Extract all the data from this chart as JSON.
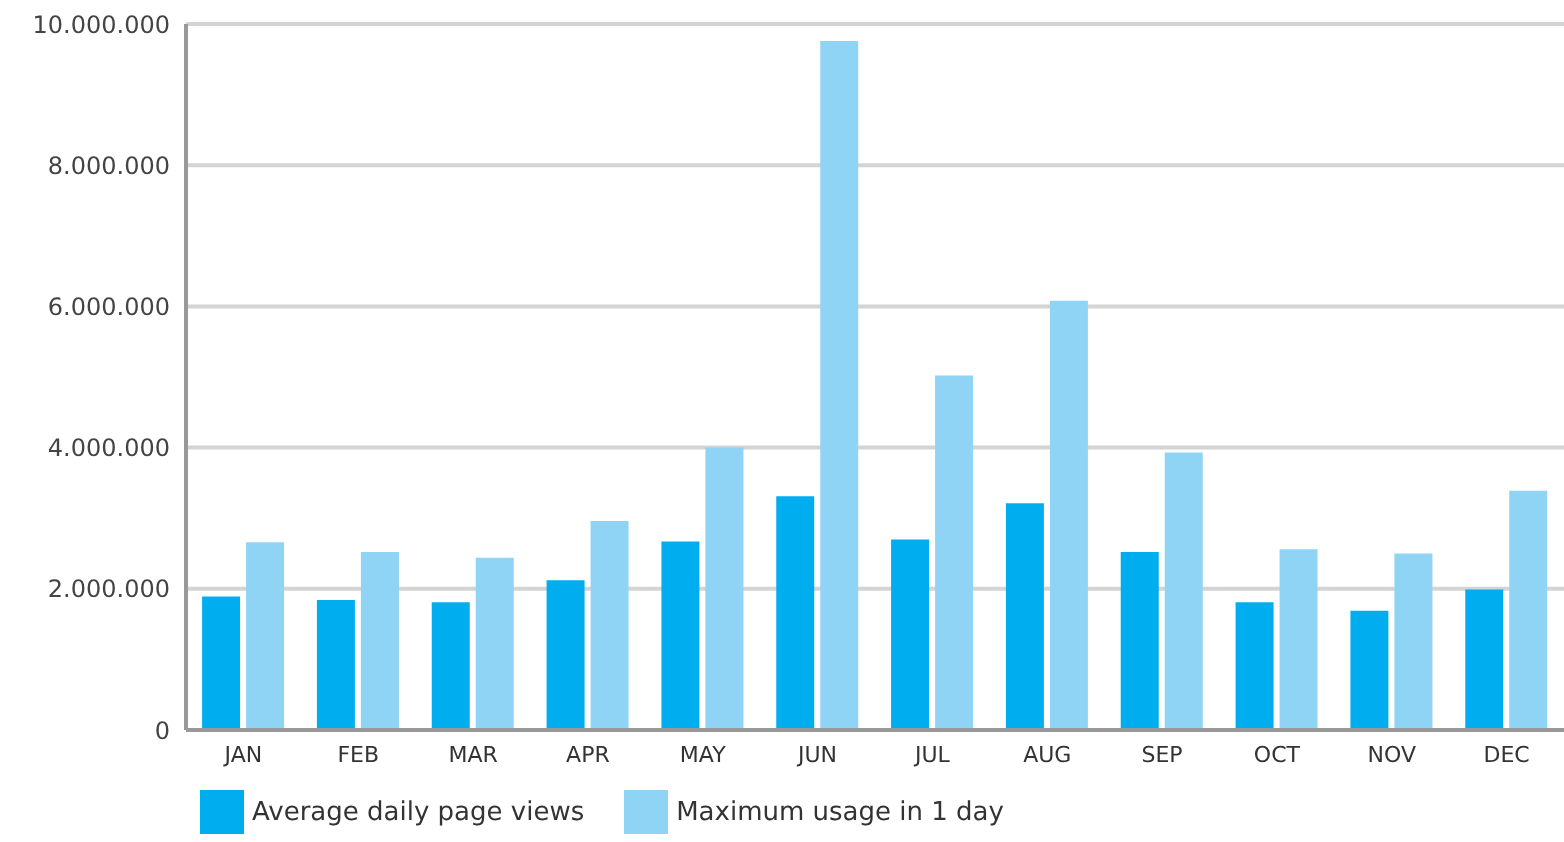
{
  "chart_data": {
    "type": "bar",
    "categories": [
      "JAN",
      "FEB",
      "MAR",
      "APR",
      "MAY",
      "JUN",
      "JUL",
      "AUG",
      "SEP",
      "OCT",
      "NOV",
      "DEC"
    ],
    "series": [
      {
        "name": "Average daily page views",
        "color": "#00aeef",
        "values": [
          1890000,
          1840000,
          1810000,
          2120000,
          2670000,
          3310000,
          2700000,
          3210000,
          2520000,
          1810000,
          1690000,
          1990000
        ]
      },
      {
        "name": "Maximum usage in 1 day",
        "color": "#8fd4f4",
        "values": [
          2660000,
          2520000,
          2440000,
          2960000,
          4000000,
          9760000,
          5020000,
          6080000,
          3930000,
          2560000,
          2500000,
          3390000
        ]
      }
    ],
    "ylim": [
      0,
      10000000
    ],
    "yticks": [
      {
        "value": 0,
        "label": "0"
      },
      {
        "value": 2000000,
        "label": "2.000.000"
      },
      {
        "value": 4000000,
        "label": "4.000.000"
      },
      {
        "value": 6000000,
        "label": "6.000.000"
      },
      {
        "value": 8000000,
        "label": "8.000.000"
      },
      {
        "value": 10000000,
        "label": "10.000.000"
      }
    ],
    "grid": "y",
    "legend": "bottom left"
  }
}
